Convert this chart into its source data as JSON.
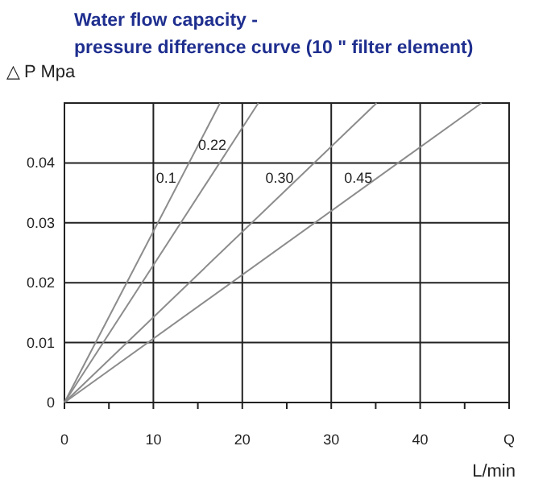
{
  "chart_data": {
    "type": "line",
    "title": "Water flow capacity -\npressure difference curve (10 \" filter element)",
    "ylabel": "△ P Mpa",
    "xlabel": "L/min",
    "xlim": [
      0,
      50
    ],
    "xticks": [
      0,
      {
        "value": 5,
        "label": null
      },
      10,
      {
        "value": 15,
        "label": null
      },
      20,
      {
        "value": 25,
        "label": null
      },
      30,
      {
        "value": 35,
        "label": null
      },
      40,
      {
        "value": 45,
        "label": null
      },
      {
        "value": 50,
        "label": "Q"
      }
    ],
    "ylim": [
      0,
      0.05
    ],
    "yticks": [
      0,
      0.01,
      0.02,
      0.03,
      0.04
    ],
    "grid": true,
    "line_style": "solid",
    "marker": "none",
    "series": [
      {
        "name": "0.1",
        "color": "#8c8c8c",
        "x": [
          0,
          17.5
        ],
        "values": [
          0,
          0.05
        ]
      },
      {
        "name": "0.22",
        "color": "#8c8c8c",
        "x": [
          0,
          21.8
        ],
        "values": [
          0,
          0.05
        ]
      },
      {
        "name": "0.30",
        "color": "#8c8c8c",
        "x": [
          0,
          35.1
        ],
        "values": [
          0,
          0.05
        ]
      },
      {
        "name": "0.45",
        "color": "#8c8c8c",
        "x": [
          0,
          46.9
        ],
        "values": [
          0,
          0.05
        ]
      }
    ]
  }
}
